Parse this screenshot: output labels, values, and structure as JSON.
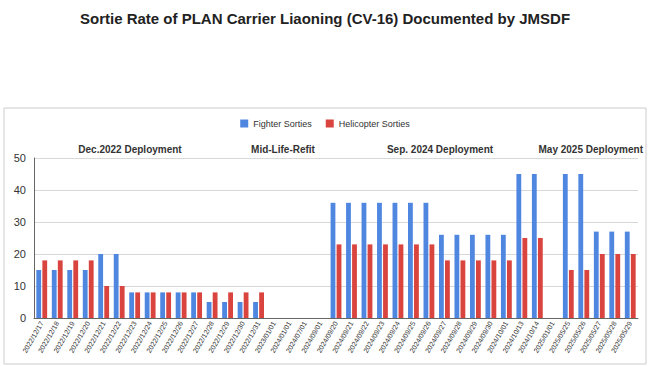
{
  "chart_data": {
    "type": "bar",
    "title": "Sortie Rate of PLAN Carrier Liaoning (CV-16) Documented by JMSDF",
    "annotations": [
      "Dec.2022 Deployment",
      "Mid-Life-Refit",
      "Sep. 2024 Deployment",
      "May 2025 Deployment"
    ],
    "categories": [
      "2022/12/17",
      "2022/12/18",
      "2022/12/19",
      "2022/12/20",
      "2022/12/21",
      "2022/12/22",
      "2022/12/23",
      "2022/12/24",
      "2022/12/25",
      "2022/12/26",
      "2022/12/27",
      "2022/12/28",
      "2022/12/29",
      "2022/12/30",
      "2022/12/31",
      "2023/01/01",
      "2024/01/01",
      "2024/07/01",
      "2024/09/01",
      "2024/09/20",
      "2024/09/21",
      "2024/09/22",
      "2024/09/23",
      "2024/09/24",
      "2024/09/25",
      "2024/09/26",
      "2024/09/27",
      "2024/09/28",
      "2024/09/29",
      "2024/09/30",
      "2024/10/01",
      "2024/10/13",
      "2024/10/14",
      "2025/01/01",
      "2025/05/25",
      "2025/05/26",
      "2025/05/27",
      "2025/05/28",
      "2025/05/29"
    ],
    "series": [
      {
        "name": "Fighter Sorties",
        "color": "#4f86e0",
        "values": [
          15,
          15,
          15,
          15,
          20,
          20,
          8,
          8,
          8,
          8,
          8,
          5,
          5,
          5,
          5,
          null,
          null,
          null,
          null,
          36,
          36,
          36,
          36,
          36,
          36,
          36,
          26,
          26,
          26,
          26,
          26,
          45,
          45,
          null,
          45,
          45,
          27,
          27,
          27
        ]
      },
      {
        "name": "Helicopter Sorties",
        "color": "#d9443f",
        "values": [
          18,
          18,
          18,
          18,
          10,
          10,
          8,
          8,
          8,
          8,
          8,
          8,
          8,
          8,
          8,
          null,
          null,
          null,
          null,
          23,
          23,
          23,
          23,
          23,
          23,
          23,
          18,
          18,
          18,
          18,
          18,
          25,
          25,
          null,
          15,
          15,
          20,
          20,
          20
        ]
      }
    ],
    "ylim": [
      0,
      50
    ],
    "yticks": [
      0,
      10,
      20,
      30,
      40,
      50
    ],
    "grid": true,
    "legend": "top"
  }
}
